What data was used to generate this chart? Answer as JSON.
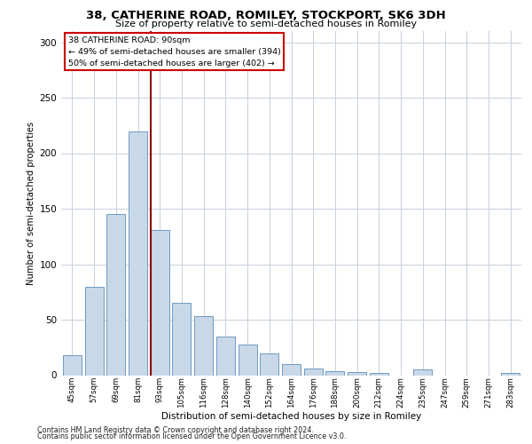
{
  "title1": "38, CATHERINE ROAD, ROMILEY, STOCKPORT, SK6 3DH",
  "title2": "Size of property relative to semi-detached houses in Romiley",
  "xlabel": "Distribution of semi-detached houses by size in Romiley",
  "ylabel": "Number of semi-detached properties",
  "categories": [
    "45sqm",
    "57sqm",
    "69sqm",
    "81sqm",
    "93sqm",
    "105sqm",
    "116sqm",
    "128sqm",
    "140sqm",
    "152sqm",
    "164sqm",
    "176sqm",
    "188sqm",
    "200sqm",
    "212sqm",
    "224sqm",
    "235sqm",
    "247sqm",
    "259sqm",
    "271sqm",
    "283sqm"
  ],
  "values": [
    18,
    80,
    145,
    220,
    131,
    65,
    53,
    35,
    28,
    20,
    10,
    6,
    4,
    3,
    2,
    0,
    5,
    0,
    0,
    0,
    2
  ],
  "bar_color": "#c8d8e8",
  "bar_edge_color": "#5b8db8",
  "grid_color": "#c8d0dc",
  "vline_color": "#8b0000",
  "vline_pos": 3.57,
  "annotation_title": "38 CATHERINE ROAD: 90sqm",
  "annotation_line1": "← 49% of semi-detached houses are smaller (394)",
  "annotation_line2": "50% of semi-detached houses are larger (402) →",
  "annotation_box_color": "#ffffff",
  "annotation_box_edge": "#cc0000",
  "footer1": "Contains HM Land Registry data © Crown copyright and database right 2024.",
  "footer2": "Contains public sector information licensed under the Open Government Licence v3.0.",
  "ylim": [
    0,
    310
  ],
  "yticks": [
    0,
    50,
    100,
    150,
    200,
    250,
    300
  ]
}
